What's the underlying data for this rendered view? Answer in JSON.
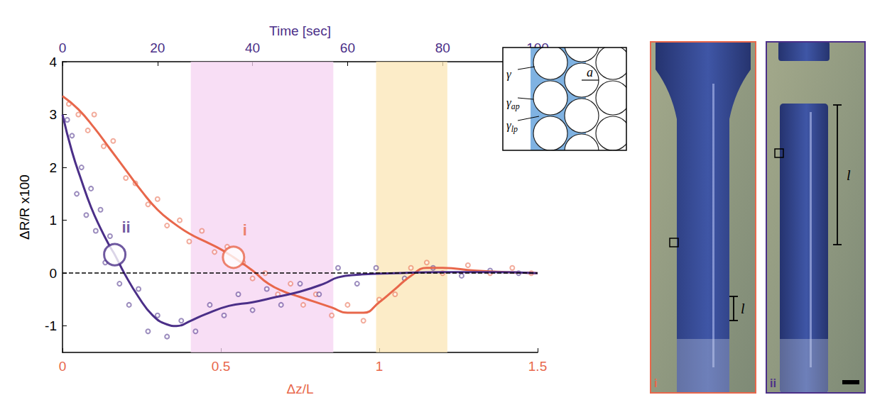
{
  "chart_data": {
    "type": "line",
    "xlabel": "Δz/L",
    "x2label": "Time [sec]",
    "ylabel": "ΔR/R x100",
    "xlim": [
      0,
      1.5
    ],
    "xticks": [
      0,
      0.5,
      1,
      1.5
    ],
    "x2lim": [
      0,
      100
    ],
    "x2ticks": [
      0,
      20,
      40,
      60,
      80,
      100
    ],
    "ylim": [
      -1.5,
      4
    ],
    "yticks": [
      -1,
      0,
      1,
      2,
      3,
      4
    ],
    "grid": false,
    "reference_line": {
      "y": 0,
      "line_style": "dashed"
    },
    "shaded_regions": [
      {
        "axis": "x2",
        "range": [
          27,
          57
        ],
        "color": "#f6d3f2"
      },
      {
        "axis": "x2",
        "range": [
          66,
          81
        ],
        "color": "#fbe6b6"
      }
    ],
    "series": [
      {
        "name": "i",
        "color": "#e8674b",
        "axis": "x",
        "x": [
          0,
          0.05,
          0.1,
          0.15,
          0.2,
          0.25,
          0.3,
          0.35,
          0.4,
          0.45,
          0.5,
          0.54,
          0.6,
          0.65,
          0.7,
          0.75,
          0.8,
          0.85,
          0.9,
          0.95,
          1.0,
          1.05,
          1.1,
          1.15,
          1.2,
          1.3,
          1.4,
          1.5
        ],
        "values": [
          3.35,
          3.1,
          2.75,
          2.35,
          1.95,
          1.55,
          1.2,
          0.95,
          0.75,
          0.6,
          0.45,
          0.3,
          0.05,
          -0.2,
          -0.35,
          -0.45,
          -0.55,
          -0.65,
          -0.75,
          -0.75,
          -0.55,
          -0.3,
          -0.05,
          0.1,
          0.1,
          0.05,
          0.02,
          0
        ],
        "points": {
          "x": [
            0.02,
            0.05,
            0.08,
            0.1,
            0.13,
            0.16,
            0.2,
            0.23,
            0.27,
            0.3,
            0.33,
            0.37,
            0.4,
            0.44,
            0.48,
            0.52,
            0.57,
            0.6,
            0.64,
            0.68,
            0.72,
            0.76,
            0.8,
            0.85,
            0.9,
            0.95,
            1.0,
            1.05,
            1.1,
            1.15,
            1.2,
            1.28,
            1.35,
            1.42,
            1.48
          ],
          "values": [
            3.2,
            3.0,
            2.7,
            3.0,
            2.4,
            2.5,
            1.8,
            1.7,
            1.3,
            1.4,
            0.9,
            1.0,
            0.6,
            0.8,
            0.4,
            0.5,
            0.2,
            -0.1,
            0.0,
            -0.4,
            -0.2,
            -0.6,
            -0.4,
            -0.8,
            -0.6,
            -0.9,
            -0.5,
            -0.4,
            0.1,
            0.2,
            0.0,
            0.15,
            0.0,
            0.1,
            0.0
          ]
        },
        "highlight": {
          "x": 0.54,
          "y": 0.3
        }
      },
      {
        "name": "ii",
        "color": "#4b2f88",
        "axis": "x2",
        "x": [
          0,
          2,
          4,
          6,
          8,
          10,
          11,
          13,
          16,
          19,
          22,
          24,
          27,
          30,
          35,
          40,
          45,
          50,
          55,
          58,
          62,
          70,
          80,
          90,
          100
        ],
        "values": [
          3.0,
          2.3,
          1.75,
          1.25,
          0.85,
          0.5,
          0.35,
          0.0,
          -0.45,
          -0.8,
          -0.97,
          -1.0,
          -0.9,
          -0.78,
          -0.62,
          -0.55,
          -0.45,
          -0.35,
          -0.2,
          -0.08,
          -0.03,
          0,
          0.02,
          0.02,
          0
        ],
        "points": {
          "x": [
            1,
            2,
            3,
            4,
            5,
            6,
            7,
            8,
            9,
            10,
            12,
            14,
            16,
            18,
            20,
            22,
            25,
            28,
            31,
            34,
            37,
            40,
            43,
            46,
            50,
            54,
            58,
            62,
            66,
            72,
            78,
            84,
            90,
            96
          ],
          "values": [
            2.9,
            2.6,
            1.5,
            2.0,
            1.1,
            1.6,
            0.8,
            1.2,
            0.2,
            0.7,
            -0.2,
            -0.6,
            -0.3,
            -1.1,
            -0.8,
            -1.2,
            -0.9,
            -1.1,
            -0.6,
            -0.8,
            -0.4,
            -0.7,
            -0.3,
            -0.6,
            -0.2,
            -0.4,
            0.1,
            -0.2,
            0.1,
            -0.1,
            0.1,
            -0.05,
            0.05,
            0.0
          ]
        },
        "highlight": {
          "x": 11,
          "y": 0.35
        }
      }
    ]
  },
  "inset": {
    "labels": [
      {
        "text": "γ"
      },
      {
        "text": "γ",
        "sub": "ap"
      },
      {
        "text": "γ",
        "sub": "lp"
      },
      {
        "text": "a"
      }
    ]
  },
  "photos": [
    {
      "label": "i",
      "length_label": "l"
    },
    {
      "label": "ii",
      "length_label": "l"
    }
  ]
}
